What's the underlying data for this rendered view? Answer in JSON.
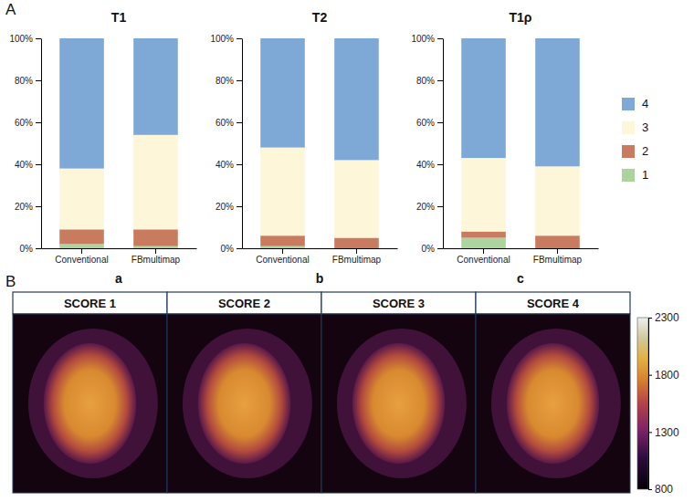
{
  "chart_data": [
    {
      "type": "bar",
      "stacked": true,
      "title": "T1",
      "categories": [
        "Conventional",
        "FBmultimap"
      ],
      "series": [
        {
          "name": "1",
          "color": "#acd49f",
          "values": [
            2,
            1
          ]
        },
        {
          "name": "2",
          "color": "#c97b5f",
          "values": [
            7,
            8
          ]
        },
        {
          "name": "3",
          "color": "#fdf6d9",
          "values": [
            29,
            45
          ]
        },
        {
          "name": "4",
          "color": "#7ea8d6",
          "values": [
            62,
            46
          ]
        }
      ],
      "ylim": [
        0,
        100
      ],
      "yticks": [
        {
          "value": 0,
          "label": "0%"
        },
        {
          "value": 20,
          "label": "20%"
        },
        {
          "value": 40,
          "label": "40%"
        },
        {
          "value": 60,
          "label": "60%"
        },
        {
          "value": 80,
          "label": "80%"
        },
        {
          "value": 100,
          "label": "100%"
        }
      ]
    },
    {
      "type": "bar",
      "stacked": true,
      "title": "T2",
      "categories": [
        "Conventional",
        "FBmultimap"
      ],
      "series": [
        {
          "name": "1",
          "color": "#acd49f",
          "values": [
            1,
            0
          ]
        },
        {
          "name": "2",
          "color": "#c97b5f",
          "values": [
            5,
            5
          ]
        },
        {
          "name": "3",
          "color": "#fdf6d9",
          "values": [
            42,
            37
          ]
        },
        {
          "name": "4",
          "color": "#7ea8d6",
          "values": [
            52,
            58
          ]
        }
      ],
      "ylim": [
        0,
        100
      ],
      "yticks": [
        {
          "value": 0,
          "label": "0%"
        },
        {
          "value": 20,
          "label": "20%"
        },
        {
          "value": 40,
          "label": "40%"
        },
        {
          "value": 60,
          "label": "60%"
        },
        {
          "value": 80,
          "label": "80%"
        },
        {
          "value": 100,
          "label": "100%"
        }
      ]
    },
    {
      "type": "bar",
      "stacked": true,
      "title": "T1ρ",
      "legend": "right",
      "categories": [
        "Conventional",
        "FBmultimap"
      ],
      "series": [
        {
          "name": "1",
          "color": "#acd49f",
          "values": [
            5,
            0
          ]
        },
        {
          "name": "2",
          "color": "#c97b5f",
          "values": [
            3,
            6
          ]
        },
        {
          "name": "3",
          "color": "#fdf6d9",
          "values": [
            35,
            33
          ]
        },
        {
          "name": "4",
          "color": "#7ea8d6",
          "values": [
            57,
            61
          ]
        }
      ],
      "ylim": [
        0,
        100
      ],
      "yticks": [
        {
          "value": 0,
          "label": "0%"
        },
        {
          "value": 20,
          "label": "20%"
        },
        {
          "value": 40,
          "label": "40%"
        },
        {
          "value": 60,
          "label": "60%"
        },
        {
          "value": 80,
          "label": "80%"
        },
        {
          "value": 100,
          "label": "100%"
        }
      ]
    }
  ],
  "panel_labels": [
    "A",
    "B"
  ],
  "subpanel_labels": [
    "a",
    "b",
    "c"
  ],
  "image_panels": {
    "titles": [
      "SCORE 1",
      "SCORE 2",
      "SCORE 3",
      "SCORE 4"
    ],
    "colorbar": {
      "range": [
        800,
        2300
      ],
      "ticks": [
        800,
        1300,
        1800,
        2300
      ]
    }
  }
}
